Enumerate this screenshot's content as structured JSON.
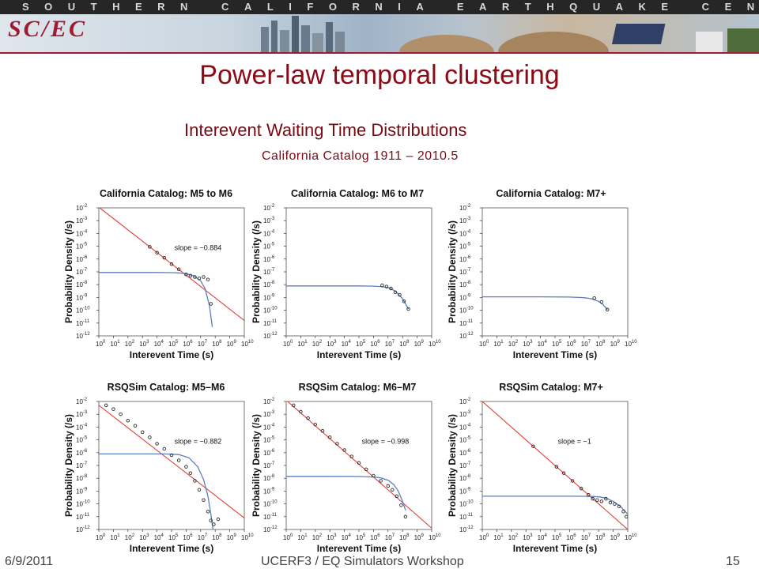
{
  "header": {
    "banner_text": "SOUTHERN CALIFORNIA EARTHQUAKE CENTER",
    "logo_text": "SC/EC"
  },
  "slide": {
    "title": "Power-law temporal clustering",
    "subtitle": "Interevent Waiting Time Distributions",
    "catalog_note": "California Catalog 1911 – 2010.5"
  },
  "footer": {
    "date": "6/9/2011",
    "center": "UCERF3 / EQ Simulators Workshop",
    "page": "15"
  },
  "colors": {
    "title": "#8b0a15",
    "power_law_line": "#e0413a",
    "fit_curve": "#5b7fbf",
    "data_points": "#2b2b2b"
  },
  "chart_data": [
    {
      "type": "scatter",
      "title": "California Catalog: M5 to M6",
      "xlabel": "Interevent Time (s)",
      "ylabel": "Probability Density (/s)",
      "xscale": "log",
      "yscale": "log",
      "xlim_exp": [
        0,
        10
      ],
      "ylim_exp": [
        -12,
        -2
      ],
      "x_ticks": [
        "10^0",
        "10^1",
        "10^2",
        "10^3",
        "10^4",
        "10^5",
        "10^6",
        "10^7",
        "10^8",
        "10^9",
        "10^10"
      ],
      "y_ticks": [
        "10^-2",
        "10^-3",
        "10^-4",
        "10^-5",
        "10^-6",
        "10^-7",
        "10^-8",
        "10^-9",
        "10^-10",
        "10^-11",
        "10^-12"
      ],
      "annotation": "slope = −0.884",
      "power_law": {
        "slope": -0.884,
        "log10_x": [
          0,
          10
        ],
        "log10_y": [
          -1.95,
          -10.8
        ]
      },
      "fit_curve": {
        "log10_x": [
          0,
          2,
          4,
          5,
          5.5,
          6,
          6.5,
          7,
          7.3,
          7.6,
          7.8
        ],
        "log10_y": [
          -7.05,
          -7.05,
          -7.05,
          -7.06,
          -7.08,
          -7.15,
          -7.3,
          -7.7,
          -8.3,
          -9.6,
          -11.3
        ]
      },
      "points": {
        "log10_x": [
          3.5,
          4,
          4.5,
          5,
          5.5,
          6,
          6.3,
          6.6,
          6.9,
          7.2,
          7.5,
          7.7
        ],
        "log10_y": [
          -5.05,
          -5.5,
          -5.9,
          -6.4,
          -6.8,
          -7.2,
          -7.3,
          -7.4,
          -7.5,
          -7.4,
          -7.6,
          -9.5
        ]
      }
    },
    {
      "type": "scatter",
      "title": "California Catalog: M6 to M7",
      "xlabel": "Interevent Time (s)",
      "ylabel": "Probability Density (/s)",
      "xscale": "log",
      "yscale": "log",
      "xlim_exp": [
        0,
        10
      ],
      "ylim_exp": [
        -12,
        -2
      ],
      "x_ticks": [
        "10^0",
        "10^1",
        "10^2",
        "10^3",
        "10^4",
        "10^5",
        "10^6",
        "10^7",
        "10^8",
        "10^9",
        "10^10"
      ],
      "y_ticks": [
        "10^-2",
        "10^-3",
        "10^-4",
        "10^-5",
        "10^-6",
        "10^-7",
        "10^-8",
        "10^-9",
        "10^-10",
        "10^-11",
        "10^-12"
      ],
      "fit_curve": {
        "log10_x": [
          0,
          3,
          5,
          6,
          6.5,
          7,
          7.5,
          8,
          8.4
        ],
        "log10_y": [
          -8.1,
          -8.1,
          -8.1,
          -8.12,
          -8.15,
          -8.22,
          -8.5,
          -9.1,
          -9.9
        ]
      },
      "points": {
        "log10_x": [
          6.6,
          6.9,
          7.2,
          7.5,
          7.8,
          8.1,
          8.4
        ],
        "log10_y": [
          -8.05,
          -8.15,
          -8.3,
          -8.6,
          -8.8,
          -9.3,
          -9.9
        ]
      }
    },
    {
      "type": "scatter",
      "title": "California Catalog: M7+",
      "xlabel": "Interevent Time (s)",
      "ylabel": "Probability Density (/s)",
      "xscale": "log",
      "yscale": "log",
      "xlim_exp": [
        0,
        10
      ],
      "ylim_exp": [
        -12,
        -2
      ],
      "x_ticks": [
        "10^0",
        "10^1",
        "10^2",
        "10^3",
        "10^4",
        "10^5",
        "10^6",
        "10^7",
        "10^8",
        "10^9",
        "10^10"
      ],
      "y_ticks": [
        "10^-2",
        "10^-3",
        "10^-4",
        "10^-5",
        "10^-6",
        "10^-7",
        "10^-8",
        "10^-9",
        "10^-10",
        "10^-11",
        "10^-12"
      ],
      "fit_curve": {
        "log10_x": [
          0,
          4,
          6,
          7,
          7.5,
          8,
          8.3,
          8.6
        ],
        "log10_y": [
          -8.95,
          -8.95,
          -8.97,
          -9.02,
          -9.1,
          -9.3,
          -9.55,
          -9.95
        ]
      },
      "points": {
        "log10_x": [
          7.7,
          8.2,
          8.6
        ],
        "log10_y": [
          -9.05,
          -9.35,
          -9.95
        ]
      }
    },
    {
      "type": "scatter",
      "title": "RSQSim Catalog: M5–M6",
      "xlabel": "Interevent Time (s)",
      "ylabel": "Probability Density (/s)",
      "xscale": "log",
      "yscale": "log",
      "xlim_exp": [
        0,
        10
      ],
      "ylim_exp": [
        -12,
        -2
      ],
      "x_ticks": [
        "10^0",
        "10^1",
        "10^2",
        "10^3",
        "10^4",
        "10^5",
        "10^6",
        "10^7",
        "10^8",
        "10^9",
        "10^10"
      ],
      "y_ticks": [
        "10^-2",
        "10^-3",
        "10^-4",
        "10^-5",
        "10^-6",
        "10^-7",
        "10^-8",
        "10^-9",
        "10^-10",
        "10^-11",
        "10^-12"
      ],
      "annotation": "slope = −0.882",
      "power_law": {
        "slope": -0.882,
        "log10_x": [
          0,
          10
        ],
        "log10_y": [
          -2.3,
          -11.1
        ]
      },
      "fit_curve": {
        "log10_x": [
          0,
          3,
          4.5,
          5.5,
          6.2,
          6.8,
          7.2,
          7.5,
          7.7,
          7.85
        ],
        "log10_y": [
          -6.1,
          -6.1,
          -6.1,
          -6.15,
          -6.4,
          -7.1,
          -8.1,
          -9.4,
          -10.8,
          -12
        ]
      },
      "points": {
        "log10_x": [
          0.5,
          1,
          1.5,
          2,
          2.5,
          3,
          3.5,
          4,
          4.5,
          5,
          5.5,
          6,
          6.3,
          6.6,
          6.9,
          7.2,
          7.5,
          7.7,
          7.9,
          8.2
        ],
        "log10_y": [
          -2.3,
          -2.6,
          -3.0,
          -3.5,
          -3.9,
          -4.4,
          -4.8,
          -5.3,
          -5.7,
          -6.2,
          -6.6,
          -7.1,
          -7.6,
          -8.2,
          -8.9,
          -9.7,
          -10.6,
          -11.3,
          -11.6,
          -11.2
        ]
      }
    },
    {
      "type": "scatter",
      "title": "RSQSim Catalog: M6–M7",
      "xlabel": "Interevent Time (s)",
      "ylabel": "Probability Density (/s)",
      "xscale": "log",
      "yscale": "log",
      "xlim_exp": [
        0,
        10
      ],
      "ylim_exp": [
        -12,
        -2
      ],
      "x_ticks": [
        "10^0",
        "10^1",
        "10^2",
        "10^3",
        "10^4",
        "10^5",
        "10^6",
        "10^7",
        "10^8",
        "10^9",
        "10^10"
      ],
      "y_ticks": [
        "10^-2",
        "10^-3",
        "10^-4",
        "10^-5",
        "10^-6",
        "10^-7",
        "10^-8",
        "10^-9",
        "10^-10",
        "10^-11",
        "10^-12"
      ],
      "annotation": "slope = −0.998",
      "power_law": {
        "slope": -0.998,
        "log10_x": [
          0,
          10
        ],
        "log10_y": [
          -1.9,
          -11.9
        ]
      },
      "fit_curve": {
        "log10_x": [
          0,
          3,
          5,
          6,
          6.5,
          7,
          7.4,
          7.7,
          8,
          8.2
        ],
        "log10_y": [
          -7.85,
          -7.85,
          -7.86,
          -7.9,
          -7.97,
          -8.15,
          -8.5,
          -9.0,
          -9.8,
          -10.5
        ]
      },
      "points": {
        "log10_x": [
          0.5,
          1,
          1.5,
          2,
          2.5,
          3,
          3.5,
          4,
          4.5,
          5,
          5.5,
          6,
          6.5,
          7,
          7.3,
          7.6,
          7.9,
          8.2
        ],
        "log10_y": [
          -2.3,
          -2.8,
          -3.3,
          -3.8,
          -4.3,
          -4.8,
          -5.3,
          -5.8,
          -6.3,
          -6.8,
          -7.3,
          -7.8,
          -8.2,
          -8.6,
          -8.9,
          -9.4,
          -10.1,
          -11.0
        ]
      }
    },
    {
      "type": "scatter",
      "title": "RSQSim Catalog: M7+",
      "xlabel": "Interevent Time (s)",
      "ylabel": "Probability Density (/s)",
      "xscale": "log",
      "yscale": "log",
      "xlim_exp": [
        0,
        10
      ],
      "ylim_exp": [
        -12,
        -2
      ],
      "x_ticks": [
        "10^0",
        "10^1",
        "10^2",
        "10^3",
        "10^4",
        "10^5",
        "10^6",
        "10^7",
        "10^8",
        "10^9",
        "10^10"
      ],
      "y_ticks": [
        "10^-2",
        "10^-3",
        "10^-4",
        "10^-5",
        "10^-6",
        "10^-7",
        "10^-8",
        "10^-9",
        "10^-10",
        "10^-11",
        "10^-12"
      ],
      "annotation": "slope =    −1",
      "power_law": {
        "slope": -1,
        "log10_x": [
          0,
          10
        ],
        "log10_y": [
          -2,
          -12
        ]
      },
      "fit_curve": {
        "log10_x": [
          0,
          4,
          6,
          7,
          7.5,
          8,
          8.5,
          9,
          9.5,
          10
        ],
        "log10_y": [
          -9.4,
          -9.4,
          -9.4,
          -9.41,
          -9.42,
          -9.45,
          -9.55,
          -9.8,
          -10.2,
          -10.8
        ]
      },
      "points": {
        "log10_x": [
          3.5,
          5.1,
          5.6,
          6.2,
          6.8,
          7.3,
          7.6,
          7.9,
          8.2,
          8.5,
          8.8,
          9.1,
          9.4,
          9.7,
          9.9
        ],
        "log10_y": [
          -5.5,
          -7.1,
          -7.6,
          -8.2,
          -8.8,
          -9.3,
          -9.6,
          -9.7,
          -9.8,
          -9.6,
          -9.9,
          -10.0,
          -10.2,
          -10.6,
          -11.0
        ]
      }
    }
  ]
}
